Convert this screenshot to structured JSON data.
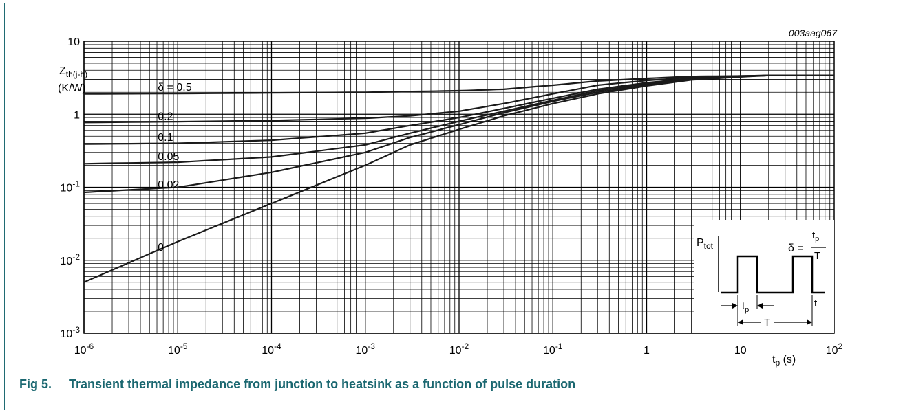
{
  "chart_data": {
    "type": "line",
    "code": "003aag067",
    "ylabel_main": "Z",
    "ylabel_sub": "th(j-h)",
    "ylabel_unit": "(K/W)",
    "xlabel_main": "t",
    "xlabel_sub": "p",
    "xlabel_unit": " (s)",
    "xscale": "log",
    "yscale": "log",
    "xlim": [
      1e-06,
      100
    ],
    "ylim": [
      0.001,
      10
    ],
    "grid": true,
    "x_ticks": [
      {
        "base": "10",
        "exp": "-6"
      },
      {
        "base": "10",
        "exp": "-5"
      },
      {
        "base": "10",
        "exp": "-4"
      },
      {
        "base": "10",
        "exp": "-3"
      },
      {
        "base": "10",
        "exp": "-2"
      },
      {
        "base": "10",
        "exp": "-1"
      },
      {
        "base": "1",
        "exp": ""
      },
      {
        "base": "10",
        "exp": ""
      },
      {
        "base": "10",
        "exp": "2"
      }
    ],
    "y_ticks": [
      {
        "base": "10",
        "exp": "-3"
      },
      {
        "base": "10",
        "exp": "-2"
      },
      {
        "base": "10",
        "exp": "-1"
      },
      {
        "base": "1",
        "exp": ""
      },
      {
        "base": "10",
        "exp": ""
      }
    ],
    "series": [
      {
        "name": "δ = 0.5",
        "label_x": 5e-06,
        "label_y": 2.1,
        "x": [
          1e-06,
          1e-05,
          0.0001,
          0.001,
          0.01,
          0.03,
          0.1,
          0.3,
          1,
          3,
          10,
          20,
          100
        ],
        "y": [
          1.9,
          1.92,
          1.96,
          2.0,
          2.1,
          2.2,
          2.5,
          2.85,
          3.1,
          3.3,
          3.35,
          3.4,
          3.4
        ]
      },
      {
        "name": "0.2",
        "label_x": 5e-06,
        "label_y": 0.84,
        "x": [
          1e-06,
          1e-05,
          0.0001,
          0.001,
          0.003,
          0.01,
          0.03,
          0.1,
          0.3,
          1,
          3,
          10,
          20,
          100
        ],
        "y": [
          0.77,
          0.79,
          0.82,
          0.88,
          0.95,
          1.1,
          1.4,
          1.9,
          2.5,
          2.9,
          3.2,
          3.35,
          3.4,
          3.4
        ]
      },
      {
        "name": "0.1",
        "label_x": 5e-06,
        "label_y": 0.43,
        "x": [
          1e-06,
          1e-05,
          0.0001,
          0.001,
          0.003,
          0.01,
          0.03,
          0.1,
          0.3,
          1,
          3,
          10,
          20,
          100
        ],
        "y": [
          0.39,
          0.4,
          0.44,
          0.55,
          0.7,
          0.9,
          1.2,
          1.65,
          2.2,
          2.7,
          3.1,
          3.3,
          3.4,
          3.4
        ]
      },
      {
        "name": "0.05",
        "label_x": 5e-06,
        "label_y": 0.235,
        "x": [
          1e-06,
          1e-05,
          0.0001,
          0.001,
          0.003,
          0.01,
          0.03,
          0.1,
          0.3,
          1,
          3,
          10,
          20,
          100
        ],
        "y": [
          0.21,
          0.22,
          0.26,
          0.38,
          0.55,
          0.8,
          1.1,
          1.55,
          2.1,
          2.6,
          3.05,
          3.3,
          3.4,
          3.4
        ]
      },
      {
        "name": "0.02",
        "label_x": 5e-06,
        "label_y": 0.097,
        "x": [
          1e-06,
          1e-05,
          0.0001,
          0.001,
          0.003,
          0.01,
          0.03,
          0.1,
          0.3,
          1,
          3,
          10,
          20,
          100
        ],
        "y": [
          0.085,
          0.1,
          0.16,
          0.3,
          0.48,
          0.72,
          1.05,
          1.5,
          2.0,
          2.5,
          3.0,
          3.3,
          3.4,
          3.4
        ]
      },
      {
        "name": "0",
        "label_x": 5e-06,
        "label_y": 0.0135,
        "x": [
          1e-06,
          1e-05,
          0.0001,
          0.001,
          0.003,
          0.01,
          0.03,
          0.1,
          0.3,
          1,
          3,
          10,
          20,
          100
        ],
        "y": [
          0.005,
          0.018,
          0.06,
          0.2,
          0.38,
          0.62,
          0.95,
          1.4,
          1.9,
          2.45,
          2.95,
          3.25,
          3.4,
          3.4
        ]
      }
    ],
    "inset": {
      "ylabel_main": "P",
      "ylabel_sub": "tot",
      "formula_lhs": "δ = ",
      "formula_num_main": "t",
      "formula_num_sub": "p",
      "formula_den": "T",
      "tp_main": "t",
      "tp_sub": "p",
      "period": "T",
      "t_axis": "t"
    }
  },
  "caption": {
    "number": "Fig 5.",
    "text": "Transient thermal impedance from junction to heatsink as a function of pulse duration"
  }
}
